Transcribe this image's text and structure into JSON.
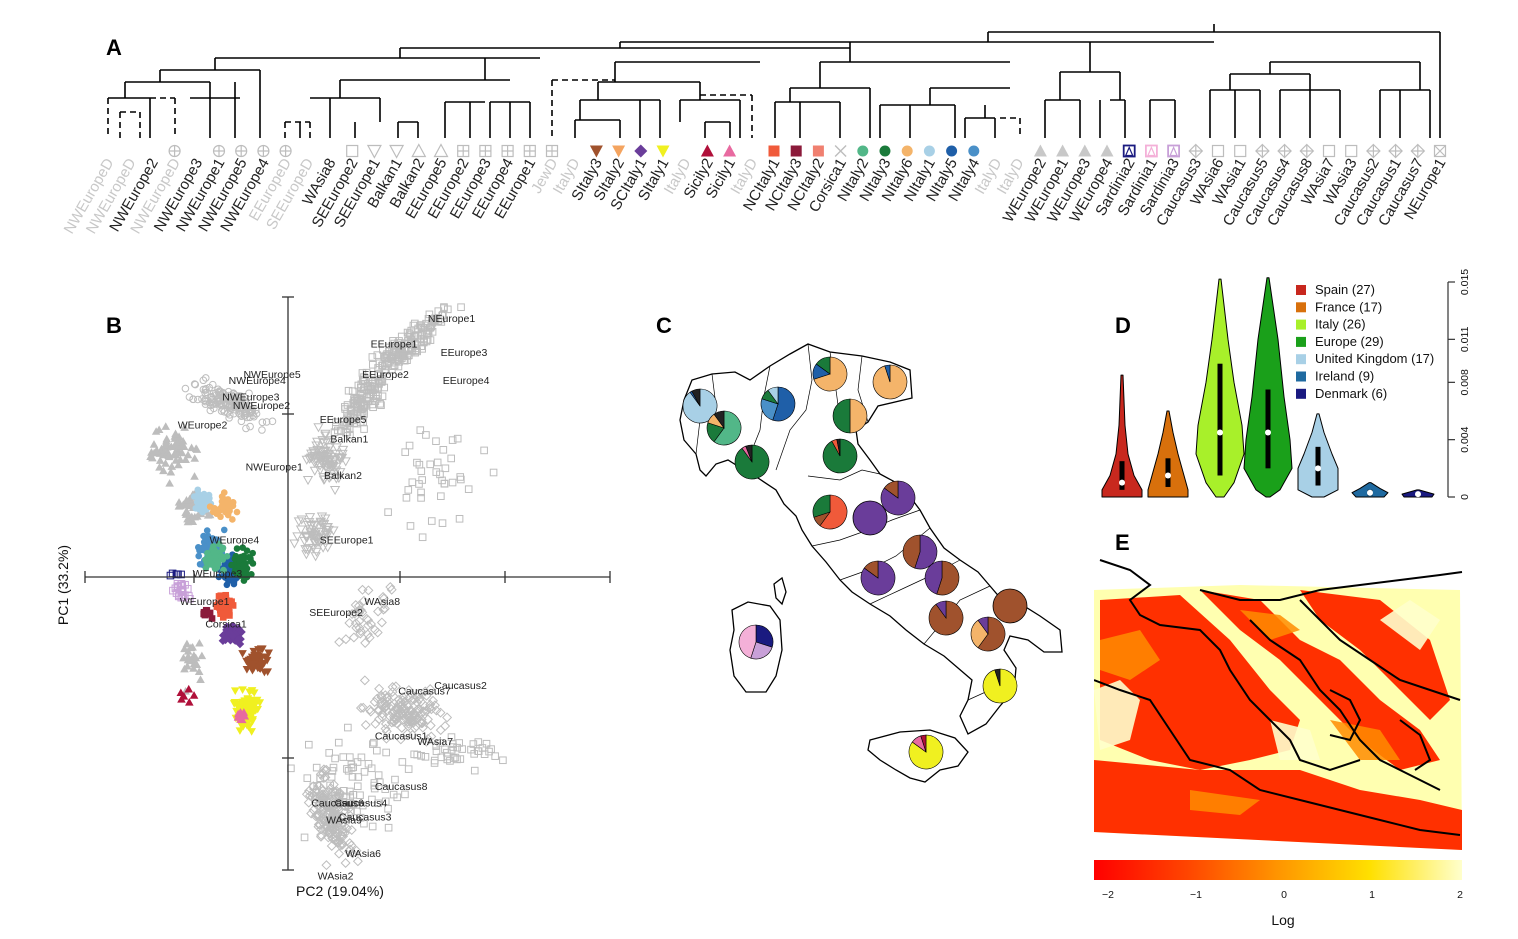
{
  "panels": {
    "A": "A",
    "B": "B",
    "C": "C",
    "D": "D",
    "E": "E"
  },
  "chart_data": [
    {
      "panel": "A",
      "type": "dendrogram",
      "leaves": [
        {
          "label": "NWEuropeD",
          "color": "#c8c8c8",
          "symbol": "none"
        },
        {
          "label": "NWEuropeD",
          "color": "#c8c8c8",
          "symbol": "none"
        },
        {
          "label": "NWEurope2",
          "color": "#222222",
          "symbol": "none"
        },
        {
          "label": "NWEuropeD",
          "color": "#c8c8c8",
          "symbol": "circle-plus"
        },
        {
          "label": "NWEurope3",
          "color": "#222222",
          "symbol": "none"
        },
        {
          "label": "NWEurope1",
          "color": "#222222",
          "symbol": "circle-plus"
        },
        {
          "label": "NWEurope5",
          "color": "#222222",
          "symbol": "circle-plus"
        },
        {
          "label": "NWEurope4",
          "color": "#222222",
          "symbol": "circle-plus"
        },
        {
          "label": "EEuropeD",
          "color": "#c8c8c8",
          "symbol": "circle-plus"
        },
        {
          "label": "SEEuropeD",
          "color": "#c8c8c8",
          "symbol": "none"
        },
        {
          "label": "WAsia8",
          "color": "#222222",
          "symbol": "none"
        },
        {
          "label": "SEEurope2",
          "color": "#222222",
          "symbol": "square-open"
        },
        {
          "label": "SEEurope1",
          "color": "#222222",
          "symbol": "triangle-down-open"
        },
        {
          "label": "Balkan1",
          "color": "#222222",
          "symbol": "triangle-down-open"
        },
        {
          "label": "Balkan2",
          "color": "#222222",
          "symbol": "triangle-open"
        },
        {
          "label": "EEurope5",
          "color": "#222222",
          "symbol": "triangle-open"
        },
        {
          "label": "EEurope2",
          "color": "#222222",
          "symbol": "square-plus"
        },
        {
          "label": "EEurope3",
          "color": "#222222",
          "symbol": "square-plus"
        },
        {
          "label": "EEurope4",
          "color": "#222222",
          "symbol": "square-plus"
        },
        {
          "label": "EEurope1",
          "color": "#222222",
          "symbol": "square-plus"
        },
        {
          "label": "JewD",
          "color": "#c8c8c8",
          "symbol": "square-plus"
        },
        {
          "label": "ItalyD",
          "color": "#c8c8c8",
          "symbol": "none"
        },
        {
          "label": "SItaly3",
          "color": "#222222",
          "symbol": "triangle-down",
          "fill": "#a0522d"
        },
        {
          "label": "SItaly2",
          "color": "#222222",
          "symbol": "triangle-down",
          "fill": "#f4a460"
        },
        {
          "label": "SCItaly1",
          "color": "#222222",
          "symbol": "diamond",
          "fill": "#6a3d9a"
        },
        {
          "label": "SItaly1",
          "color": "#222222",
          "symbol": "triangle-down",
          "fill": "#f0f020"
        },
        {
          "label": "ItalyD",
          "color": "#c8c8c8",
          "symbol": "none"
        },
        {
          "label": "Sicily2",
          "color": "#222222",
          "symbol": "triangle",
          "fill": "#b0103a"
        },
        {
          "label": "Sicily1",
          "color": "#222222",
          "symbol": "triangle",
          "fill": "#e86aa0"
        },
        {
          "label": "ItalyD",
          "color": "#c8c8c8",
          "symbol": "none"
        },
        {
          "label": "NCItaly1",
          "color": "#222222",
          "symbol": "square",
          "fill": "#f05a3a"
        },
        {
          "label": "NCItaly3",
          "color": "#222222",
          "symbol": "square",
          "fill": "#8b1a3a"
        },
        {
          "label": "NCItaly2",
          "color": "#222222",
          "symbol": "square",
          "fill": "#f08070"
        },
        {
          "label": "Corsica1",
          "color": "#222222",
          "symbol": "cross"
        },
        {
          "label": "NItaly2",
          "color": "#222222",
          "symbol": "circle",
          "fill": "#52b788"
        },
        {
          "label": "NItaly3",
          "color": "#222222",
          "symbol": "circle",
          "fill": "#1a7a3a"
        },
        {
          "label": "NItaly6",
          "color": "#222222",
          "symbol": "circle",
          "fill": "#f4b46a"
        },
        {
          "label": "NItaly1",
          "color": "#222222",
          "symbol": "circle",
          "fill": "#a8d0e6"
        },
        {
          "label": "NItaly5",
          "color": "#222222",
          "symbol": "circle",
          "fill": "#1f5fa8"
        },
        {
          "label": "NItaly4",
          "color": "#222222",
          "symbol": "circle",
          "fill": "#4a90c8"
        },
        {
          "label": "ItalyD",
          "color": "#c8c8c8",
          "symbol": "none"
        },
        {
          "label": "ItalyD",
          "color": "#c8c8c8",
          "symbol": "none"
        },
        {
          "label": "WEurope2",
          "color": "#222222",
          "symbol": "triangle",
          "fill": "#c8c8c8"
        },
        {
          "label": "WEurope1",
          "color": "#222222",
          "symbol": "triangle",
          "fill": "#c8c8c8"
        },
        {
          "label": "WEurope3",
          "color": "#222222",
          "symbol": "triangle",
          "fill": "#c8c8c8"
        },
        {
          "label": "WEurope4",
          "color": "#222222",
          "symbol": "triangle",
          "fill": "#c8c8c8"
        },
        {
          "label": "Sardinia2",
          "color": "#222222",
          "symbol": "sq-tri",
          "fill": "#1a1a80"
        },
        {
          "label": "Sardinia1",
          "color": "#222222",
          "symbol": "sq-tri",
          "fill": "#f4b0d8"
        },
        {
          "label": "Sardinia3",
          "color": "#222222",
          "symbol": "sq-tri",
          "fill": "#c8a0d8"
        },
        {
          "label": "Caucasus3",
          "color": "#222222",
          "symbol": "diamond-plus"
        },
        {
          "label": "WAsia6",
          "color": "#222222",
          "symbol": "square-open"
        },
        {
          "label": "WAsia1",
          "color": "#222222",
          "symbol": "square-open"
        },
        {
          "label": "Caucasus5",
          "color": "#222222",
          "symbol": "diamond-plus"
        },
        {
          "label": "Caucasus4",
          "color": "#222222",
          "symbol": "diamond-plus"
        },
        {
          "label": "Caucasus8",
          "color": "#222222",
          "symbol": "diamond-plus"
        },
        {
          "label": "WAsia7",
          "color": "#222222",
          "symbol": "square-open"
        },
        {
          "label": "WAsia3",
          "color": "#222222",
          "symbol": "square-open"
        },
        {
          "label": "Caucasus2",
          "color": "#222222",
          "symbol": "diamond-plus"
        },
        {
          "label": "Caucasus1",
          "color": "#222222",
          "symbol": "diamond-plus"
        },
        {
          "label": "Caucasus7",
          "color": "#222222",
          "symbol": "diamond-plus"
        },
        {
          "label": "NEurope1",
          "color": "#222222",
          "symbol": "square-x"
        }
      ]
    },
    {
      "panel": "B",
      "type": "scatter",
      "xlabel": "PC2 (19.04%)",
      "ylabel": "PC1 (33.2%)",
      "labels": [
        {
          "text": "NEurope1",
          "x": 0.66,
          "y": 0.91
        },
        {
          "text": "EEurope1",
          "x": 0.39,
          "y": 0.82
        },
        {
          "text": "EEurope3",
          "x": 0.72,
          "y": 0.79
        },
        {
          "text": "EEurope2",
          "x": 0.35,
          "y": 0.71
        },
        {
          "text": "EEurope4",
          "x": 0.73,
          "y": 0.69
        },
        {
          "text": "NWEurope5",
          "x": -0.21,
          "y": 0.71
        },
        {
          "text": "NWEurope4",
          "x": -0.28,
          "y": 0.69
        },
        {
          "text": "NWEurope3",
          "x": -0.31,
          "y": 0.63
        },
        {
          "text": "NWEurope2",
          "x": -0.26,
          "y": 0.6
        },
        {
          "text": "WEurope2",
          "x": -0.52,
          "y": 0.53
        },
        {
          "text": "EEurope5",
          "x": 0.15,
          "y": 0.55
        },
        {
          "text": "Balkan1",
          "x": 0.2,
          "y": 0.48
        },
        {
          "text": "NWEurope1",
          "x": -0.2,
          "y": 0.38
        },
        {
          "text": "Balkan2",
          "x": 0.17,
          "y": 0.35
        },
        {
          "text": "SEEurope1",
          "x": 0.15,
          "y": 0.12
        },
        {
          "text": "WEurope4",
          "x": -0.37,
          "y": 0.12
        },
        {
          "text": "WEurope3",
          "x": -0.45,
          "y": 0.0
        },
        {
          "text": "WEurope1",
          "x": -0.51,
          "y": -0.1
        },
        {
          "text": "Corsica1",
          "x": -0.39,
          "y": -0.18
        },
        {
          "text": "SEEurope2",
          "x": 0.1,
          "y": -0.14
        },
        {
          "text": "WAsia8",
          "x": 0.36,
          "y": -0.1
        },
        {
          "text": "Caucasus7",
          "x": 0.52,
          "y": -0.42
        },
        {
          "text": "Caucasus2",
          "x": 0.69,
          "y": -0.4
        },
        {
          "text": "Caucasus1",
          "x": 0.41,
          "y": -0.58
        },
        {
          "text": "WAsia7",
          "x": 0.61,
          "y": -0.6
        },
        {
          "text": "Caucasus8",
          "x": 0.41,
          "y": -0.76
        },
        {
          "text": "Caucasus6",
          "x": 0.11,
          "y": -0.82
        },
        {
          "text": "Caucasus4",
          "x": 0.22,
          "y": -0.82
        },
        {
          "text": "WAsia9",
          "x": 0.18,
          "y": -0.88
        },
        {
          "text": "Caucasus3",
          "x": 0.24,
          "y": -0.87
        },
        {
          "text": "WAsia6",
          "x": 0.27,
          "y": -1.0
        },
        {
          "text": "WAsia2",
          "x": 0.14,
          "y": -1.08
        }
      ]
    },
    {
      "panel": "D",
      "type": "violin",
      "ylim": [
        0,
        0.015
      ],
      "yticks": [
        "0",
        "0.004",
        "0.008",
        "0.011",
        "0.015"
      ],
      "series": [
        {
          "name": "Spain (27)",
          "color": "#c8281e",
          "median": 0.001
        },
        {
          "name": "France (17)",
          "color": "#d8700c",
          "median": 0.0015
        },
        {
          "name": "Italy (26)",
          "color": "#a8f02a",
          "median": 0.0045
        },
        {
          "name": "Europe (29)",
          "color": "#1aa01a",
          "median": 0.0045
        },
        {
          "name": "United Kingdom (17)",
          "color": "#a8d0e6",
          "median": 0.002
        },
        {
          "name": "Ireland (9)",
          "color": "#1f6aa0",
          "median": 0.0003
        },
        {
          "name": "Denmark (6)",
          "color": "#1a1a80",
          "median": 0.0002
        }
      ]
    },
    {
      "panel": "E",
      "type": "heatmap",
      "xlabel": "Log",
      "colorbar_ticks": [
        "−2",
        "−1",
        "0",
        "1",
        "2"
      ],
      "colorbar_range": [
        -2,
        2
      ]
    }
  ]
}
